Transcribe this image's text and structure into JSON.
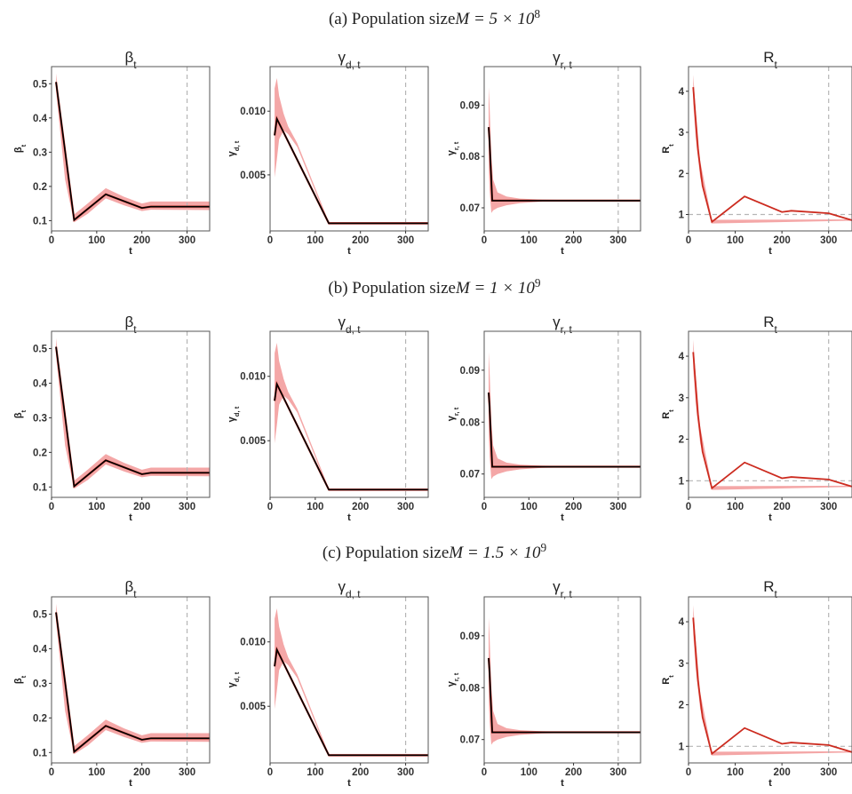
{
  "figure": {
    "rows": [
      {
        "label": "(a) Population size",
        "math": "M = 5 × 10",
        "sup": "8"
      },
      {
        "label": "(b) Population size",
        "math": "M = 1 × 10",
        "sup": "9"
      },
      {
        "label": "(c) Population size",
        "math": "M = 1.5 × 10",
        "sup": "9"
      }
    ],
    "panel_titles": [
      {
        "base": "β",
        "sub": "t"
      },
      {
        "base": "γ",
        "sub": "d, t"
      },
      {
        "base": "γ",
        "sub": "r, t"
      },
      {
        "base": "R",
        "sub": "t"
      }
    ],
    "y_axis_labels": [
      {
        "base": "β",
        "sub": "t"
      },
      {
        "base": "γ",
        "sub": "d, t"
      },
      {
        "base": "γ",
        "sub": "r, t"
      },
      {
        "base": "R",
        "sub": "t"
      }
    ],
    "x_axis_label": "t"
  },
  "colors": {
    "estimate_line": "#000000",
    "truth_line": "#cc2b1f",
    "band": "#f08a8a",
    "reference_line": "#b5b5b5",
    "frame": "#555555"
  },
  "chart_data": [
    {
      "type": "line",
      "title": "β_t",
      "xlabel": "t",
      "ylabel": "β_t",
      "xlim": [
        0,
        350
      ],
      "ylim": [
        0.07,
        0.55
      ],
      "x_ticks": [
        0,
        100,
        200,
        300
      ],
      "y_ticks": [
        0.1,
        0.2,
        0.3,
        0.4,
        0.5
      ],
      "y_tick_labels": [
        "0.1",
        "0.2",
        "0.3",
        "0.4",
        "0.5"
      ],
      "vline": 300,
      "series": [
        {
          "x": [
            10,
            50,
            120,
            200,
            220,
            350
          ],
          "values": [
            0.505,
            0.102,
            0.177,
            0.137,
            0.141,
            0.141
          ]
        }
      ],
      "band": {
        "x": [
          10,
          30,
          50,
          80,
          120,
          160,
          200,
          220,
          350
        ],
        "lower": [
          0.48,
          0.22,
          0.095,
          0.12,
          0.165,
          0.145,
          0.128,
          0.132,
          0.131
        ],
        "upper": [
          0.53,
          0.29,
          0.118,
          0.15,
          0.195,
          0.17,
          0.15,
          0.156,
          0.156
        ]
      },
      "grid": false
    },
    {
      "type": "line",
      "title": "γ_d,t",
      "xlabel": "t",
      "ylabel": "γ_d,t",
      "xlim": [
        0,
        350
      ],
      "ylim": [
        0.0006,
        0.0135
      ],
      "x_ticks": [
        0,
        100,
        200,
        300
      ],
      "y_ticks": [
        0.005,
        0.01
      ],
      "y_tick_labels": [
        "0.005",
        "0.010"
      ],
      "vline": 300,
      "series": [
        {
          "x": [
            10,
            15,
            130,
            350
          ],
          "values": [
            0.0081,
            0.0094,
            0.0012,
            0.0012
          ]
        }
      ],
      "band": {
        "x": [
          10,
          15,
          20,
          30,
          40,
          60,
          130,
          350
        ],
        "lower": [
          0.0048,
          0.0062,
          0.0078,
          0.0085,
          0.0082,
          0.0072,
          0.0011,
          0.0011
        ],
        "upper": [
          0.0118,
          0.0126,
          0.0112,
          0.0098,
          0.0088,
          0.0075,
          0.0013,
          0.0013
        ]
      },
      "grid": false
    },
    {
      "type": "line",
      "title": "γ_r,t",
      "xlabel": "t",
      "ylabel": "γ_r,t",
      "xlim": [
        0,
        350
      ],
      "ylim": [
        0.0655,
        0.0975
      ],
      "x_ticks": [
        0,
        100,
        200,
        300
      ],
      "y_ticks": [
        0.07,
        0.08,
        0.09
      ],
      "y_tick_labels": [
        "0.07",
        "0.08",
        "0.09"
      ],
      "vline": 300,
      "series": [
        {
          "x": [
            10,
            12,
            18,
            350
          ],
          "values": [
            0.0857,
            0.083,
            0.0714,
            0.0714
          ]
        }
      ],
      "band": {
        "x": [
          10,
          12,
          16,
          20,
          30,
          50,
          80,
          130,
          200,
          350
        ],
        "lower": [
          0.079,
          0.0735,
          0.069,
          0.0695,
          0.07,
          0.0705,
          0.0709,
          0.0712,
          0.0713,
          0.0713
        ],
        "upper": [
          0.0935,
          0.09,
          0.08,
          0.0755,
          0.073,
          0.0722,
          0.0718,
          0.0716,
          0.0715,
          0.0715
        ]
      },
      "grid": false
    },
    {
      "type": "line",
      "title": "R_t",
      "xlabel": "t",
      "ylabel": "R_t",
      "xlim": [
        0,
        350
      ],
      "ylim": [
        0.6,
        4.6
      ],
      "x_ticks": [
        0,
        100,
        200,
        300
      ],
      "y_ticks": [
        1,
        2,
        3,
        4
      ],
      "y_tick_labels": [
        "1",
        "2",
        "3",
        "4"
      ],
      "vline": 300,
      "hline": 1,
      "series": [
        {
          "x": [
            10,
            20,
            30,
            50,
            120,
            200,
            220,
            300,
            350
          ],
          "values": [
            4.1,
            2.6,
            1.7,
            0.82,
            1.44,
            1.06,
            1.09,
            1.03,
            0.86
          ]
        }
      ],
      "band": {
        "x": [
          10,
          15,
          25,
          50,
          350
        ],
        "lower": [
          3.7,
          2.9,
          1.9,
          0.78,
          0.85
        ],
        "upper": [
          4.4,
          3.6,
          2.3,
          0.87,
          0.88
        ]
      },
      "grid": false
    }
  ]
}
